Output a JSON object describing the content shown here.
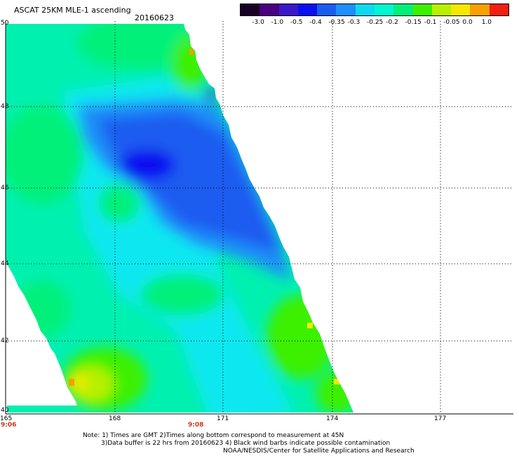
{
  "title": {
    "product": "ASCAT 25KM MLE-1 ascending",
    "date": "20160623"
  },
  "colorbar": {
    "ticks": [
      "-3.0",
      "-1.0",
      "-0.5",
      "-0.4",
      "-0.35",
      "-0.3",
      "-0.25",
      "-0.2",
      "-0.15",
      "-0.1",
      "-0.05",
      "0.0",
      "1.0"
    ],
    "colors": [
      "#1a0026",
      "#4a0080",
      "#3a18c8",
      "#0a10f0",
      "#1a5cf0",
      "#1e8ef8",
      "#10d8f0",
      "#00f8d0",
      "#00f07a",
      "#3ef000",
      "#b8f000",
      "#f8e800",
      "#f8a000",
      "#f02010"
    ]
  },
  "map": {
    "lat_labels": [
      "50",
      "48",
      "46",
      "44",
      "42",
      "40"
    ],
    "lon_labels": [
      "165",
      "168",
      "171",
      "174",
      "177"
    ],
    "time_labels": [
      "9:06",
      "9:08"
    ],
    "lon_range": [
      165,
      179.2
    ],
    "lat_range": [
      40,
      50
    ]
  },
  "notes": {
    "line1": "Note: 1) Times are GMT 2)Times along bottom correspond to measurement at 45N",
    "line2": "3)Data buffer is 22 hrs from 20160623 4) Black wind barbs indicate possible contamination",
    "line3": "NOAA/NESDIS/Center for Satellite Applications and Research"
  }
}
